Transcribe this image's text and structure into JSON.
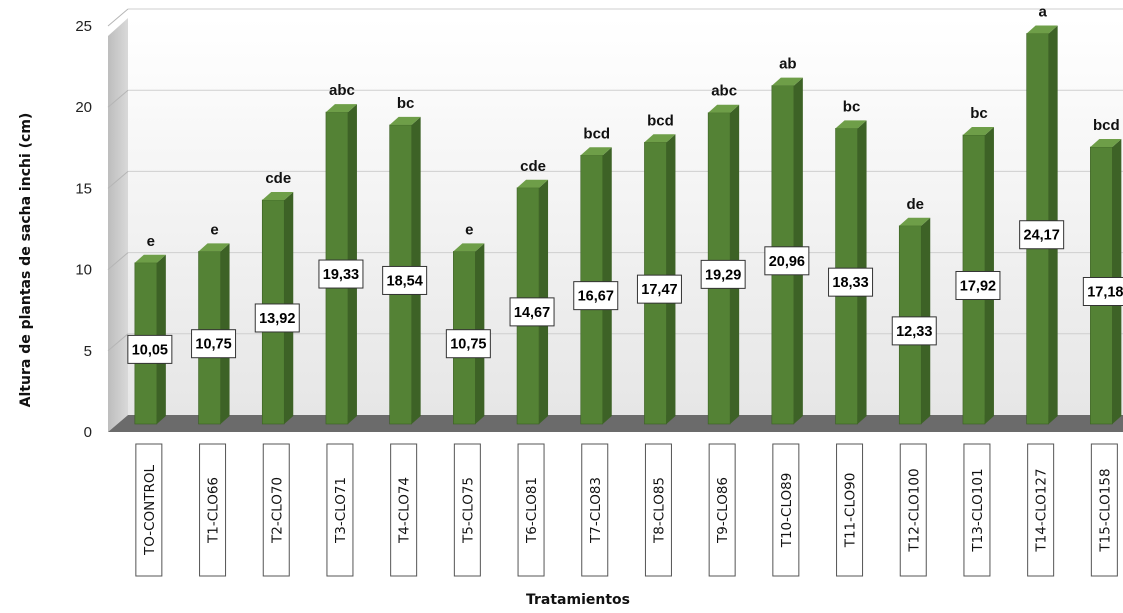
{
  "chart_data": {
    "type": "bar",
    "xlabel": "Tratamientos",
    "ylabel": "Altura de plantas de sacha inchi (cm)",
    "ylim": [
      0,
      25
    ],
    "yticks": [
      0,
      5,
      10,
      15,
      20,
      25
    ],
    "grid": true,
    "categories": [
      "TO-CONTROL",
      "T1-CLO66",
      "T2-CLO70",
      "T3-CLO71",
      "T4-CLO74",
      "T5-CLO75",
      "T6-CLO81",
      "T7-CLO83",
      "T8-CLO85",
      "T9-CLO86",
      "T10-CLO89",
      "T11-CLO90",
      "T12-CLO100",
      "T13-CLO101",
      "T14-CLO127",
      "T15-CLO158"
    ],
    "values": [
      10.05,
      10.75,
      13.92,
      19.33,
      18.54,
      10.75,
      14.67,
      16.67,
      17.47,
      19.29,
      20.96,
      18.33,
      12.33,
      17.92,
      24.17,
      17.18
    ],
    "value_labels": [
      "10,05",
      "10,75",
      "13,92",
      "19,33",
      "18,54",
      "10,75",
      "14,67",
      "16,67",
      "17,47",
      "19,29",
      "20,96",
      "18,33",
      "12,33",
      "17,92",
      "24,17",
      "17,18"
    ],
    "significance": [
      "e",
      "e",
      "cde",
      "abc",
      "bc",
      "e",
      "cde",
      "bcd",
      "bcd",
      "abc",
      "ab",
      "bc",
      "de",
      "bc",
      "a",
      "bcd"
    ],
    "colors": {
      "bar_front": "#548235",
      "bar_side": "#3d6226",
      "bar_top": "#6e9e48",
      "floor": "#6b6b6b",
      "wall": "#f2f2f2",
      "left_wall": "#c9c9c9"
    }
  }
}
